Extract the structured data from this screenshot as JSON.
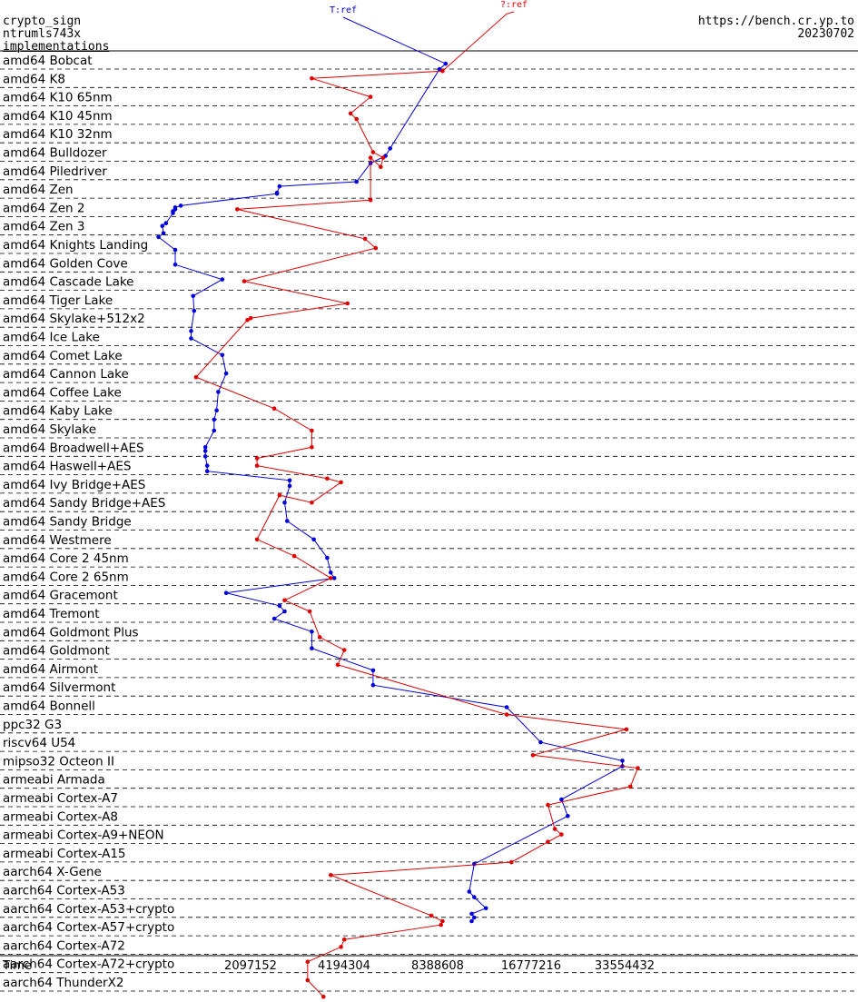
{
  "header": {
    "primitive": "crypto_sign",
    "algorithm": "ntrumls743x",
    "implementations_link": "implementations",
    "site": "https://bench.cr.yp.to",
    "date": "20230702"
  },
  "colors": {
    "ref_series": "#0000dd",
    "ref_alt_series": "#e00000",
    "dashed_grid": "#000000"
  },
  "chart_data": {
    "type": "line",
    "xlabel": "Time",
    "x_scale": "log2",
    "xlim": [
      1048576,
      67108864
    ],
    "x_ticks": [
      {
        "value": 2097152,
        "label": "2097152"
      },
      {
        "value": 4194304,
        "label": "4194304"
      },
      {
        "value": 8388608,
        "label": "8388608"
      },
      {
        "value": 16777216,
        "label": "16777216"
      },
      {
        "value": 33554432,
        "label": "33554432"
      }
    ],
    "categories": [
      "amd64 Bobcat",
      "amd64 K8",
      "amd64 K10 65nm",
      "amd64 K10 45nm",
      "amd64 K10 32nm",
      "amd64 Bulldozer",
      "amd64 Piledriver",
      "amd64 Zen",
      "amd64 Zen 2",
      "amd64 Zen 3",
      "amd64 Knights Landing",
      "amd64 Golden Cove",
      "amd64 Cascade Lake",
      "amd64 Tiger Lake",
      "amd64 Skylake+512x2",
      "amd64 Ice Lake",
      "amd64 Comet Lake",
      "amd64 Cannon Lake",
      "amd64 Coffee Lake",
      "amd64 Kaby Lake",
      "amd64 Skylake",
      "amd64 Broadwell+AES",
      "amd64 Haswell+AES",
      "amd64 Ivy Bridge+AES",
      "amd64 Sandy Bridge+AES",
      "amd64 Sandy Bridge",
      "amd64 Westmere",
      "amd64 Core 2 45nm",
      "amd64 Core 2 65nm",
      "amd64 Gracemont",
      "amd64 Tremont",
      "amd64 Goldmont Plus",
      "amd64 Goldmont",
      "amd64 Airmont",
      "amd64 Silvermont",
      "amd64 Bonnell",
      "ppc32 G3",
      "riscv64 U54",
      "mipso32 Octeon II",
      "armeabi Armada",
      "armeabi Cortex-A7",
      "armeabi Cortex-A8",
      "armeabi Cortex-A9+NEON",
      "armeabi Cortex-A15",
      "aarch64 X-Gene",
      "aarch64 Cortex-A53",
      "aarch64 Cortex-A53+crypto",
      "aarch64 Cortex-A57+crypto",
      "aarch64 Cortex-A72",
      "aarch64 Cortex-A72+crypto",
      "aarch64 ThunderX2"
    ],
    "series": [
      {
        "name": "T:ref",
        "points": [
          {
            "x": 8900000,
            "y": 0.2
          },
          {
            "x": 8500000,
            "y": 0.5
          },
          {
            "x": 5900000,
            "y": 4.8
          },
          {
            "x": 5700000,
            "y": 5.2
          },
          {
            "x": 5100000,
            "y": 5.6
          },
          {
            "x": 4600000,
            "y": 6.6
          },
          {
            "x": 2600000,
            "y": 6.85
          },
          {
            "x": 2550000,
            "y": 7.2
          },
          {
            "x": 2550000,
            "y": 7.25
          },
          {
            "x": 1250000,
            "y": 7.9
          },
          {
            "x": 1200000,
            "y": 8.0
          },
          {
            "x": 1200000,
            "y": 8.1
          },
          {
            "x": 1180000,
            "y": 8.2
          },
          {
            "x": 1180000,
            "y": 8.3
          },
          {
            "x": 1120000,
            "y": 8.85
          },
          {
            "x": 1090000,
            "y": 9.0
          },
          {
            "x": 1100000,
            "y": 9.4
          },
          {
            "x": 1060000,
            "y": 9.6
          },
          {
            "x": 1200000,
            "y": 10.3
          },
          {
            "x": 1200000,
            "y": 11.1
          },
          {
            "x": 1700000,
            "y": 11.9
          },
          {
            "x": 1370000,
            "y": 12.8
          },
          {
            "x": 1380000,
            "y": 13.6
          },
          {
            "x": 1350000,
            "y": 14.7
          },
          {
            "x": 1350000,
            "y": 15.1
          },
          {
            "x": 1700000,
            "y": 16.0
          },
          {
            "x": 1750000,
            "y": 17.0
          },
          {
            "x": 1650000,
            "y": 18.0
          },
          {
            "x": 1630000,
            "y": 19.0
          },
          {
            "x": 1600000,
            "y": 19.5
          },
          {
            "x": 1600000,
            "y": 20.1
          },
          {
            "x": 1500000,
            "y": 21.0
          },
          {
            "x": 1500000,
            "y": 21.2
          },
          {
            "x": 1500000,
            "y": 21.5
          },
          {
            "x": 1520000,
            "y": 22.0
          },
          {
            "x": 1520000,
            "y": 22.3
          },
          {
            "x": 2800000,
            "y": 22.8
          },
          {
            "x": 2800000,
            "y": 23.1
          },
          {
            "x": 2700000,
            "y": 24.0
          },
          {
            "x": 2750000,
            "y": 25.0
          },
          {
            "x": 3350000,
            "y": 26.0
          },
          {
            "x": 3700000,
            "y": 27.0
          },
          {
            "x": 3800000,
            "y": 27.8
          },
          {
            "x": 3900000,
            "y": 28.1
          },
          {
            "x": 1750000,
            "y": 28.9
          },
          {
            "x": 2600000,
            "y": 29.6
          },
          {
            "x": 2700000,
            "y": 29.9
          },
          {
            "x": 2500000,
            "y": 30.3
          },
          {
            "x": 3300000,
            "y": 31.0
          },
          {
            "x": 3300000,
            "y": 31.9
          },
          {
            "x": 5200000,
            "y": 33.1
          },
          {
            "x": 5200000,
            "y": 33.9
          },
          {
            "x": 14000000,
            "y": 35.1
          },
          {
            "x": 18000000,
            "y": 37.0
          },
          {
            "x": 33000000,
            "y": 38.0
          },
          {
            "x": 33000000,
            "y": 38.3
          },
          {
            "x": 21000000,
            "y": 40.1
          },
          {
            "x": 22000000,
            "y": 41.0
          },
          {
            "x": 11000000,
            "y": 43.6
          },
          {
            "x": 10600000,
            "y": 45.1
          },
          {
            "x": 11000000,
            "y": 45.4
          },
          {
            "x": 12000000,
            "y": 46.0
          },
          {
            "x": 10800000,
            "y": 46.3
          },
          {
            "x": 11000000,
            "y": 46.5
          },
          {
            "x": 10800000,
            "y": 46.7
          }
        ]
      },
      {
        "name": "?:ref",
        "points": [
          {
            "x": 14000000,
            "y": -2.5
          },
          {
            "x": 8700000,
            "y": 0.6
          },
          {
            "x": 3300000,
            "y": 1.0
          },
          {
            "x": 5100000,
            "y": 2.0
          },
          {
            "x": 4400000,
            "y": 2.9
          },
          {
            "x": 4600000,
            "y": 3.2
          },
          {
            "x": 5200000,
            "y": 5.0
          },
          {
            "x": 5600000,
            "y": 5.3
          },
          {
            "x": 5500000,
            "y": 5.8
          },
          {
            "x": 5100000,
            "y": 5.3
          },
          {
            "x": 5100000,
            "y": 7.6
          },
          {
            "x": 1900000,
            "y": 8.1
          },
          {
            "x": 4900000,
            "y": 9.7
          },
          {
            "x": 5300000,
            "y": 10.2
          },
          {
            "x": 2000000,
            "y": 12.0
          },
          {
            "x": 4300000,
            "y": 13.2
          },
          {
            "x": 2100000,
            "y": 14.0
          },
          {
            "x": 2050000,
            "y": 14.1
          },
          {
            "x": 1400000,
            "y": 17.2
          },
          {
            "x": 2500000,
            "y": 18.9
          },
          {
            "x": 3300000,
            "y": 20.1
          },
          {
            "x": 3300000,
            "y": 21.0
          },
          {
            "x": 2200000,
            "y": 21.6
          },
          {
            "x": 2200000,
            "y": 22.0
          },
          {
            "x": 3700000,
            "y": 22.7
          },
          {
            "x": 4100000,
            "y": 22.9
          },
          {
            "x": 3300000,
            "y": 24.0
          },
          {
            "x": 2600000,
            "y": 23.6
          },
          {
            "x": 2200000,
            "y": 26.0
          },
          {
            "x": 2900000,
            "y": 26.9
          },
          {
            "x": 3800000,
            "y": 28.1
          },
          {
            "x": 2700000,
            "y": 29.3
          },
          {
            "x": 3250000,
            "y": 29.9
          },
          {
            "x": 3500000,
            "y": 31.3
          },
          {
            "x": 4200000,
            "y": 32.0
          },
          {
            "x": 4000000,
            "y": 32.8
          },
          {
            "x": 14000000,
            "y": 35.5
          },
          {
            "x": 34000000,
            "y": 36.3
          },
          {
            "x": 17000000,
            "y": 37.7
          },
          {
            "x": 37000000,
            "y": 38.4
          },
          {
            "x": 35000000,
            "y": 39.4
          },
          {
            "x": 19000000,
            "y": 40.4
          },
          {
            "x": 20000000,
            "y": 41.7
          },
          {
            "x": 21000000,
            "y": 42.0
          },
          {
            "x": 19000000,
            "y": 42.4
          },
          {
            "x": 14500000,
            "y": 43.5
          },
          {
            "x": 3800000,
            "y": 44.2
          },
          {
            "x": 8000000,
            "y": 46.4
          },
          {
            "x": 8700000,
            "y": 46.7
          },
          {
            "x": 8600000,
            "y": 46.9
          },
          {
            "x": 4200000,
            "y": 47.7
          },
          {
            "x": 4100000,
            "y": 48.1
          },
          {
            "x": 3200000,
            "y": 48.9
          },
          {
            "x": 3200000,
            "y": 49.9
          },
          {
            "x": 3600000,
            "y": 50.8
          }
        ]
      }
    ]
  }
}
